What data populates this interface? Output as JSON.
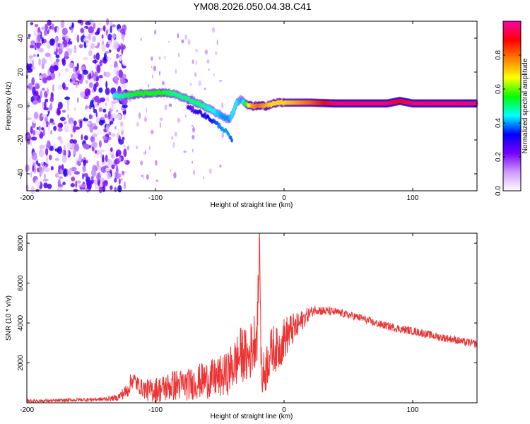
{
  "figure_title": "YM08.2026.050.04.38.C41",
  "colorbar": {
    "label": "Normalized spectral amplitude",
    "ticks": [
      "0.0",
      "0.2",
      "0.4",
      "0.6",
      "0.8"
    ],
    "tick_values": [
      0.0,
      0.2,
      0.4,
      0.6,
      0.8
    ],
    "range": [
      0,
      1
    ],
    "colors": [
      "#ffffff",
      "#cc99ff",
      "#7700ff",
      "#0000ff",
      "#00ffff",
      "#00ff00",
      "#ffff00",
      "#ff7f00",
      "#ff0000",
      "#ff00aa"
    ]
  },
  "chart_data": [
    {
      "type": "heatmap",
      "title": "",
      "xlabel": "Height of straight line (km)",
      "ylabel": "Frequency (Hz)",
      "xlim": [
        -200,
        150
      ],
      "ylim": [
        -50,
        50
      ],
      "xticks": [
        -200,
        -100,
        0,
        100
      ],
      "xtick_labels": [
        "-200",
        "-100",
        "0",
        "100"
      ],
      "yticks": [
        -40,
        -20,
        0,
        20,
        40
      ],
      "ytick_labels": [
        "-40",
        "-20",
        "0",
        "20",
        "40"
      ],
      "trace": {
        "x": [
          -132,
          -125,
          -115,
          -105,
          -95,
          -85,
          -75,
          -65,
          -55,
          -48,
          -43,
          -40,
          -37,
          -33,
          -30,
          -25,
          -20,
          -15,
          -10,
          -5,
          0,
          10,
          20,
          40,
          60,
          80,
          90,
          100,
          120,
          150
        ],
        "freq": [
          6,
          6,
          7,
          7.5,
          8,
          7,
          4,
          1,
          -3,
          -6,
          -8,
          -5,
          2,
          4,
          1,
          0,
          0,
          0,
          1,
          2,
          2,
          2,
          2,
          1.5,
          1.5,
          1.5,
          3,
          1.5,
          1.5,
          1.5
        ],
        "amplitude": [
          0.45,
          0.5,
          0.55,
          0.55,
          0.55,
          0.5,
          0.5,
          0.5,
          0.45,
          0.4,
          0.4,
          0.45,
          0.45,
          0.4,
          0.55,
          0.75,
          0.8,
          0.75,
          0.7,
          0.7,
          0.7,
          0.75,
          0.8,
          0.95,
          0.95,
          0.95,
          0.9,
          0.95,
          0.95,
          0.95
        ]
      },
      "dispersive_branch": {
        "x": [
          -75,
          -65,
          -55,
          -48,
          -43,
          -40
        ],
        "freq": [
          -1,
          -4,
          -9,
          -13,
          -17,
          -22
        ],
        "amplitude": [
          0.25,
          0.3,
          0.35,
          0.4,
          0.4,
          0.35
        ]
      },
      "noise_region": {
        "x_range": [
          -200,
          -130
        ],
        "freq_range": [
          -50,
          50
        ],
        "amplitude": 0.25
      }
    },
    {
      "type": "line",
      "title": "",
      "xlabel": "Height of straight line (km)",
      "ylabel": "SNR (10 * v/v)",
      "xlim": [
        -200,
        150
      ],
      "ylim": [
        0,
        8500
      ],
      "xticks": [
        -200,
        -100,
        0,
        100
      ],
      "xtick_labels": [
        "-200",
        "-100",
        "0",
        "100"
      ],
      "yticks": [
        2000,
        4000,
        6000,
        8000
      ],
      "ytick_labels": [
        "2000",
        "4000",
        "6000",
        "8000"
      ],
      "series": [
        {
          "name": "SNR",
          "color": "#ee3333",
          "x": [
            -200,
            -180,
            -160,
            -140,
            -130,
            -122,
            -118,
            -112,
            -105,
            -95,
            -85,
            -75,
            -65,
            -55,
            -45,
            -38,
            -33,
            -28,
            -24,
            -21,
            -20,
            -19,
            -18,
            -17,
            -15,
            -12,
            -8,
            -5,
            0,
            5,
            10,
            15,
            20,
            25,
            30,
            40,
            50,
            60,
            70,
            80,
            90,
            100,
            110,
            120,
            130,
            140,
            150
          ],
          "y": [
            100,
            100,
            150,
            180,
            250,
            600,
            1200,
            800,
            600,
            700,
            900,
            900,
            1100,
            1200,
            1400,
            2000,
            2500,
            2200,
            3000,
            3600,
            5500,
            8400,
            2500,
            1300,
            1500,
            2300,
            2800,
            2600,
            3200,
            3600,
            3800,
            4200,
            4500,
            4700,
            4600,
            4550,
            4400,
            4250,
            4000,
            3850,
            3700,
            3600,
            3450,
            3300,
            3200,
            3050,
            2950
          ],
          "noise_amplitude": [
            80,
            80,
            90,
            100,
            150,
            400,
            500,
            400,
            600,
            700,
            800,
            800,
            900,
            1000,
            1100,
            1300,
            1400,
            1400,
            1500,
            1500,
            1500,
            200,
            1200,
            1200,
            1200,
            1200,
            1200,
            1100,
            1100,
            900,
            700,
            500,
            300,
            250,
            250,
            200,
            200,
            200,
            200,
            200,
            200,
            200,
            200,
            200,
            200,
            200,
            200
          ]
        }
      ]
    }
  ]
}
